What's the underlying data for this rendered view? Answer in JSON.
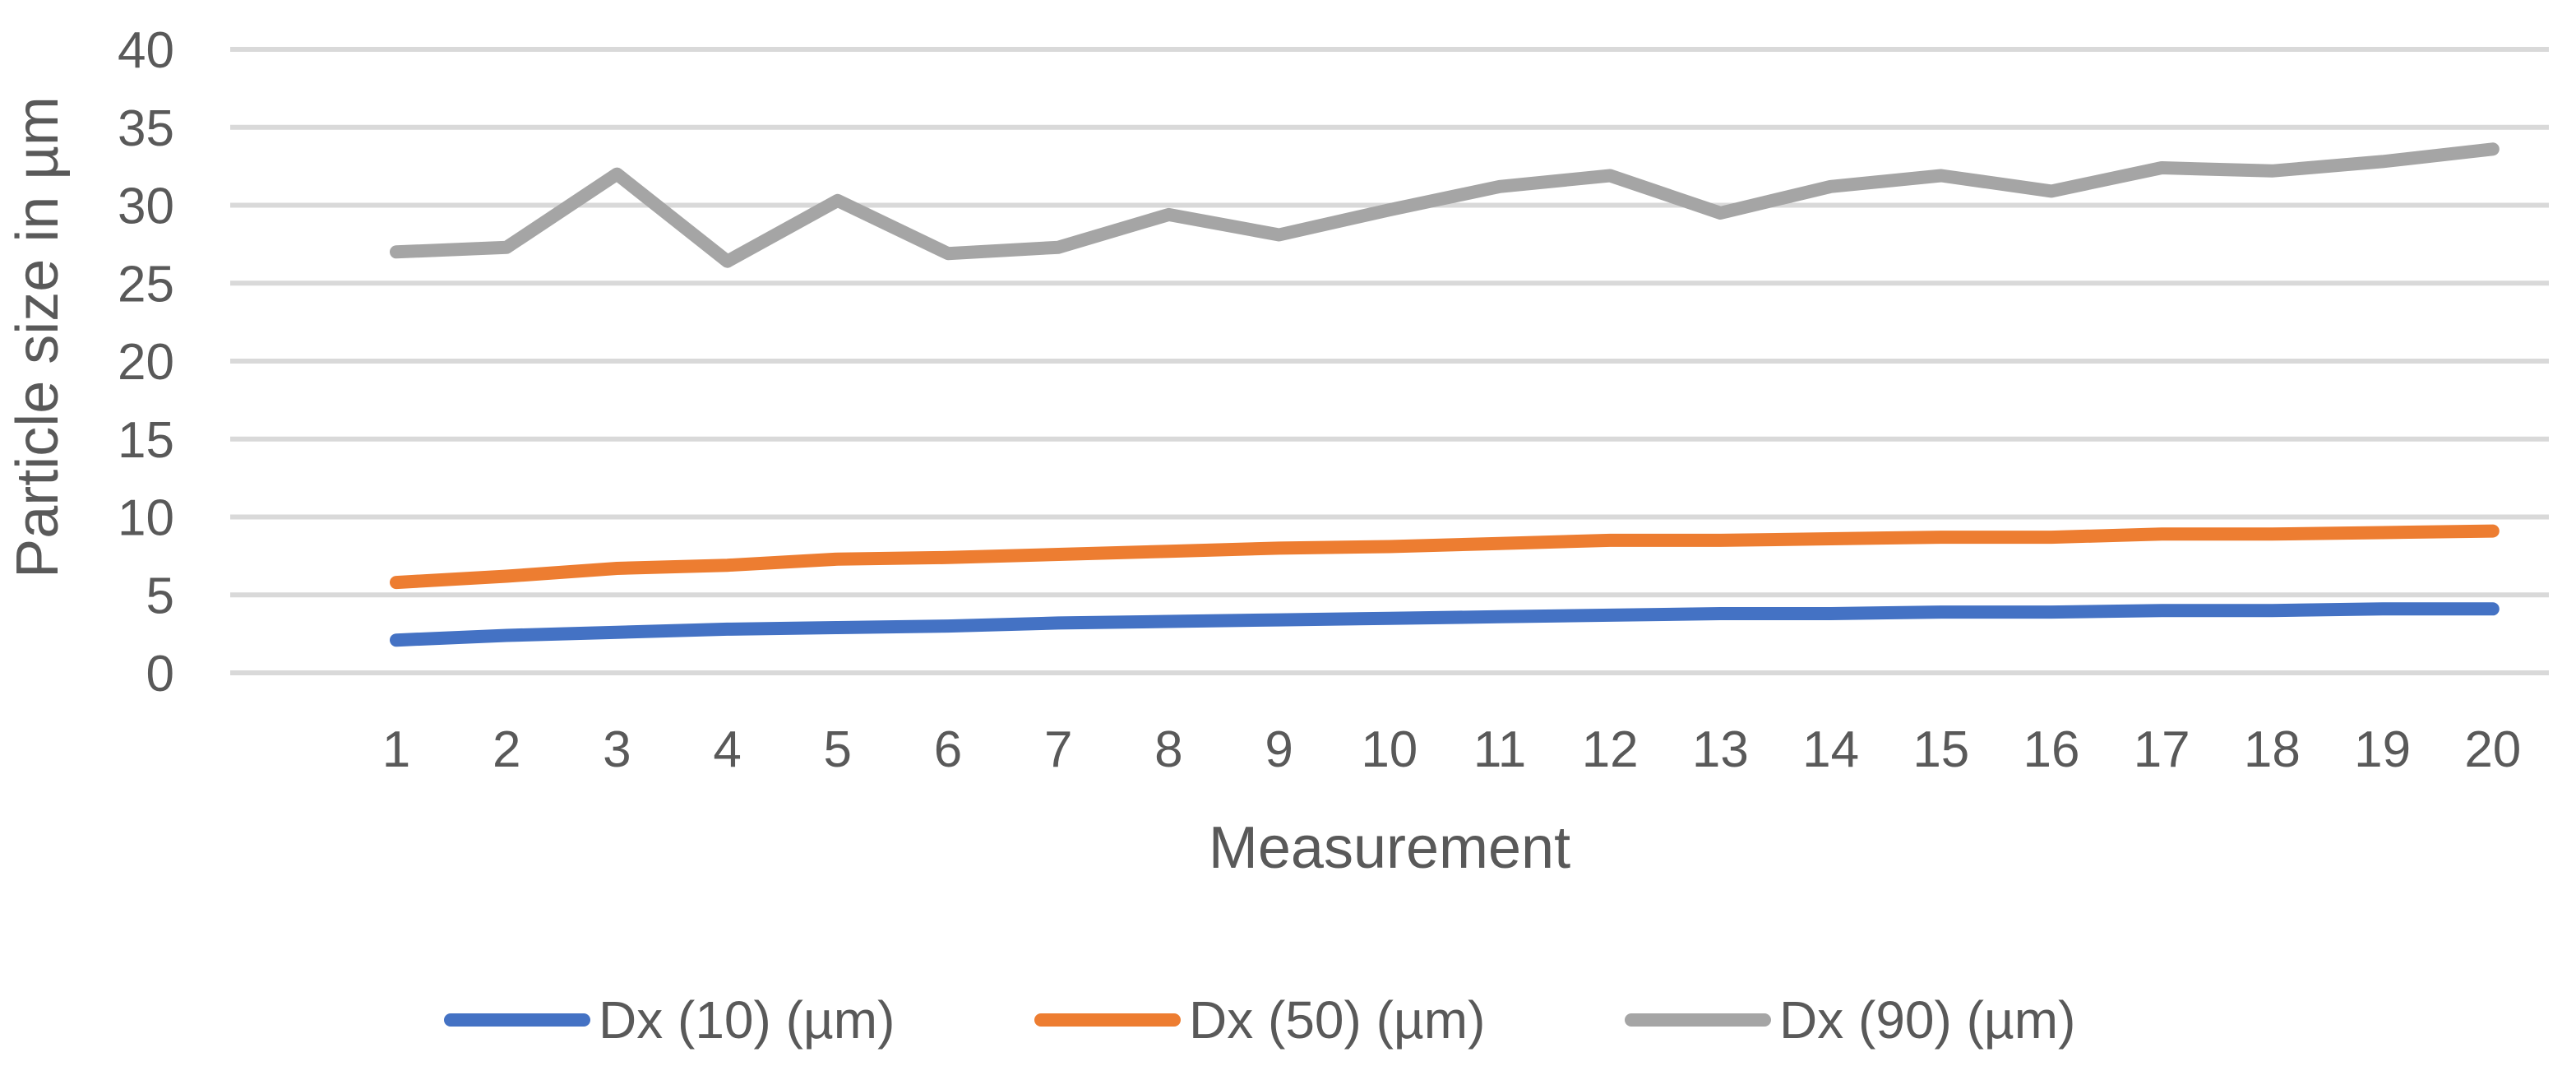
{
  "chart_data": {
    "type": "line",
    "title": "",
    "xlabel": "Measurement",
    "ylabel": "Particle size in µm",
    "categories": [
      "1",
      "2",
      "3",
      "4",
      "5",
      "6",
      "7",
      "8",
      "9",
      "10",
      "11",
      "12",
      "13",
      "14",
      "15",
      "16",
      "17",
      "18",
      "19",
      "20"
    ],
    "ylim": [
      0,
      40
    ],
    "yticks": [
      0,
      5,
      10,
      15,
      20,
      25,
      30,
      35,
      40
    ],
    "grid": true,
    "legend_position": "bottom",
    "series": [
      {
        "name": "Dx (10) (µm)",
        "color": "#4472c4",
        "values": [
          2.1,
          2.4,
          2.6,
          2.8,
          2.9,
          3.0,
          3.2,
          3.3,
          3.4,
          3.5,
          3.6,
          3.7,
          3.8,
          3.8,
          3.9,
          3.9,
          4.0,
          4.0,
          4.1,
          4.1
        ]
      },
      {
        "name": "Dx (50) (µm)",
        "color": "#ed7d31",
        "values": [
          5.8,
          6.2,
          6.7,
          6.9,
          7.3,
          7.4,
          7.6,
          7.8,
          8.0,
          8.1,
          8.3,
          8.5,
          8.5,
          8.6,
          8.7,
          8.7,
          8.9,
          8.9,
          9.0,
          9.1
        ]
      },
      {
        "name": "Dx (90) (µm)",
        "color": "#a5a5a5",
        "values": [
          27.0,
          27.3,
          32.0,
          26.4,
          30.3,
          26.9,
          27.3,
          29.4,
          28.1,
          29.7,
          31.2,
          31.9,
          29.5,
          31.2,
          31.9,
          30.9,
          32.4,
          32.2,
          32.8,
          33.6
        ]
      }
    ]
  }
}
